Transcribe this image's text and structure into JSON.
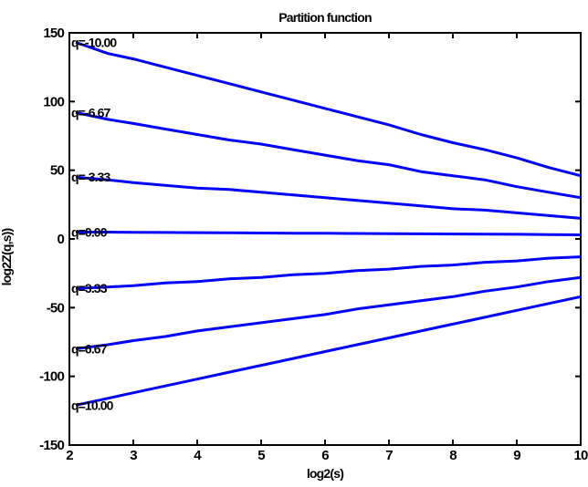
{
  "chart_data": {
    "type": "line",
    "title": "Partition function",
    "xlabel": "log2(s)",
    "ylabel": "log2Z(q,s))",
    "xlim": [
      2,
      10
    ],
    "ylim": [
      -150,
      150
    ],
    "x_ticks": [
      2,
      3,
      4,
      5,
      6,
      7,
      8,
      9,
      10
    ],
    "y_ticks": [
      -150,
      -100,
      -50,
      0,
      50,
      100,
      150
    ],
    "x_tick_labels": [
      "2",
      "3",
      "4",
      "5",
      "6",
      "7",
      "8",
      "9",
      "10"
    ],
    "y_tick_labels": [
      "-150",
      "-100",
      "-50",
      "0",
      "50",
      "100",
      "150"
    ],
    "grid": false,
    "line_color": "#0000ff",
    "x": [
      2.1,
      2.6,
      3,
      3.5,
      4,
      4.5,
      5,
      5.5,
      6,
      6.5,
      7,
      7.5,
      8,
      8.5,
      9,
      9.5,
      10
    ],
    "series": [
      {
        "name": "q=-10.00",
        "values": [
          143,
          135,
          131,
          125,
          119,
          113,
          107,
          101,
          95,
          89,
          83,
          76,
          70,
          65,
          59,
          52,
          46
        ]
      },
      {
        "name": "q=-6.67",
        "values": [
          92,
          87,
          84,
          80,
          76,
          72,
          69,
          65,
          61,
          57,
          54,
          49,
          46,
          43,
          38,
          34,
          30
        ]
      },
      {
        "name": "q=-3.33",
        "values": [
          45,
          43,
          41,
          39,
          37,
          36,
          34,
          32,
          30,
          28,
          26,
          24,
          22,
          21,
          19,
          17,
          15
        ]
      },
      {
        "name": "q=0.00",
        "values": [
          5,
          5,
          4.8,
          4.7,
          4.6,
          4.5,
          4.3,
          4.2,
          4.1,
          4,
          3.8,
          3.7,
          3.6,
          3.5,
          3.4,
          3.2,
          3
        ]
      },
      {
        "name": "q=3.33",
        "values": [
          -36,
          -35,
          -34,
          -32,
          -31,
          -29,
          -28,
          -26,
          -25,
          -23,
          -22,
          -20,
          -19,
          -17,
          -16,
          -14,
          -13
        ]
      },
      {
        "name": "q=6.67",
        "values": [
          -80,
          -77,
          -74,
          -71,
          -67,
          -64,
          -61,
          -58,
          -55,
          -51,
          -48,
          -45,
          -42,
          -38,
          -35,
          -31,
          -28
        ]
      },
      {
        "name": "q=10.00",
        "values": [
          -121,
          -116,
          -112,
          -107,
          -102,
          -97,
          -92,
          -87,
          -82,
          -77,
          -72,
          -67,
          -62,
          -57,
          -52,
          -47,
          -42
        ]
      }
    ]
  }
}
